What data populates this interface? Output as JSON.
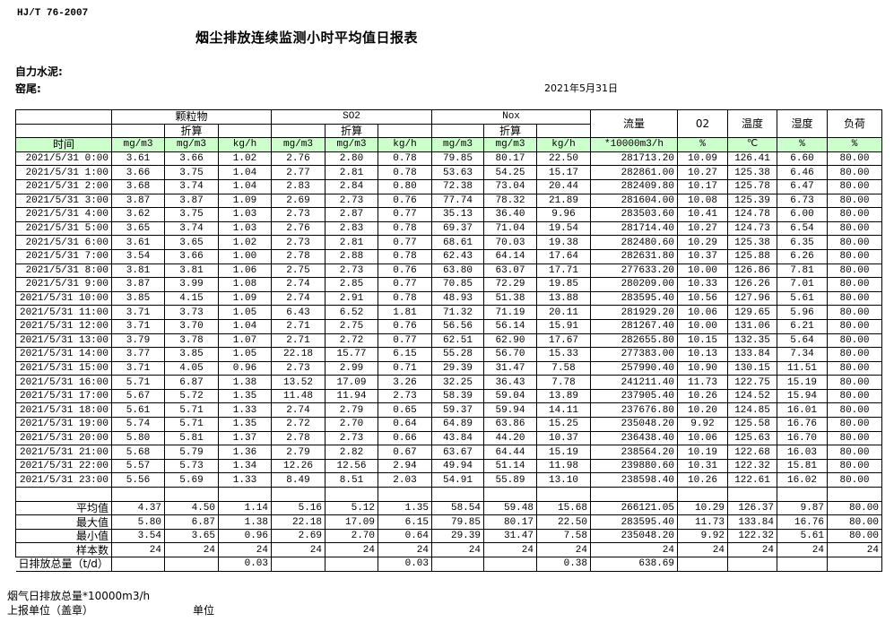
{
  "header": {
    "standard": "HJ/T  76-2007",
    "title": "烟尘排放连续监测小时平均值日报表",
    "company": "自力水泥:",
    "location": "窑尾:",
    "date": "2021年5月31日"
  },
  "table": {
    "groups": {
      "particulate": "颗粒物",
      "so2": "SO2",
      "nox": "Nox",
      "flow": "流量",
      "o2": "02",
      "temp": "温度",
      "humidity": "湿度",
      "load": "负荷"
    },
    "converted_label": "折算",
    "time_label": "时间",
    "units": [
      "mg/m3",
      "mg/m3",
      "kg/h",
      "mg/m3",
      "mg/m3",
      "kg/h",
      "mg/m3",
      "mg/m3",
      "kg/h",
      "*10000m3/h",
      "%",
      "℃",
      "%",
      "%"
    ],
    "rows": [
      [
        "2021/5/31  0:00",
        "3.61",
        "3.66",
        "1.02",
        "2.76",
        "2.80",
        "0.78",
        "79.85",
        "80.17",
        "22.50",
        "281713.20",
        "10.09",
        "126.41",
        "6.60",
        "80.00"
      ],
      [
        "2021/5/31  1:00",
        "3.66",
        "3.75",
        "1.04",
        "2.77",
        "2.81",
        "0.78",
        "53.63",
        "54.25",
        "15.17",
        "282861.00",
        "10.27",
        "125.38",
        "6.46",
        "80.00"
      ],
      [
        "2021/5/31  2:00",
        "3.68",
        "3.74",
        "1.04",
        "2.83",
        "2.84",
        "0.80",
        "72.38",
        "73.04",
        "20.44",
        "282409.80",
        "10.17",
        "125.78",
        "6.47",
        "80.00"
      ],
      [
        "2021/5/31  3:00",
        "3.87",
        "3.87",
        "1.09",
        "2.69",
        "2.73",
        "0.76",
        "77.74",
        "78.32",
        "21.89",
        "281604.00",
        "10.08",
        "125.39",
        "6.73",
        "80.00"
      ],
      [
        "2021/5/31  4:00",
        "3.62",
        "3.75",
        "1.03",
        "2.73",
        "2.87",
        "0.77",
        "35.13",
        "36.40",
        "9.96",
        "283503.60",
        "10.41",
        "124.78",
        "6.00",
        "80.00"
      ],
      [
        "2021/5/31  5:00",
        "3.65",
        "3.74",
        "1.03",
        "2.76",
        "2.83",
        "0.78",
        "69.37",
        "71.04",
        "19.54",
        "281714.40",
        "10.27",
        "124.73",
        "6.54",
        "80.00"
      ],
      [
        "2021/5/31  6:00",
        "3.61",
        "3.65",
        "1.02",
        "2.73",
        "2.81",
        "0.77",
        "68.61",
        "70.03",
        "19.38",
        "282480.60",
        "10.29",
        "125.38",
        "6.35",
        "80.00"
      ],
      [
        "2021/5/31  7:00",
        "3.54",
        "3.66",
        "1.00",
        "2.78",
        "2.88",
        "0.78",
        "62.43",
        "64.14",
        "17.64",
        "282631.80",
        "10.37",
        "125.88",
        "6.26",
        "80.00"
      ],
      [
        "2021/5/31  8:00",
        "3.81",
        "3.81",
        "1.06",
        "2.75",
        "2.73",
        "0.76",
        "63.80",
        "63.07",
        "17.71",
        "277633.20",
        "10.00",
        "126.86",
        "7.81",
        "80.00"
      ],
      [
        "2021/5/31  9:00",
        "3.87",
        "3.99",
        "1.08",
        "2.74",
        "2.85",
        "0.77",
        "70.85",
        "72.29",
        "19.85",
        "280209.00",
        "10.33",
        "126.26",
        "7.01",
        "80.00"
      ],
      [
        "2021/5/31 10:00",
        "3.85",
        "4.15",
        "1.09",
        "2.74",
        "2.91",
        "0.78",
        "48.93",
        "51.38",
        "13.88",
        "283595.40",
        "10.56",
        "127.96",
        "5.61",
        "80.00"
      ],
      [
        "2021/5/31 11:00",
        "3.71",
        "3.73",
        "1.05",
        "6.43",
        "6.52",
        "1.81",
        "71.32",
        "71.19",
        "20.11",
        "281929.20",
        "10.06",
        "129.65",
        "5.96",
        "80.00"
      ],
      [
        "2021/5/31 12:00",
        "3.71",
        "3.70",
        "1.04",
        "2.71",
        "2.75",
        "0.76",
        "56.56",
        "56.14",
        "15.91",
        "281267.40",
        "10.00",
        "131.06",
        "6.21",
        "80.00"
      ],
      [
        "2021/5/31 13:00",
        "3.79",
        "3.78",
        "1.07",
        "2.71",
        "2.72",
        "0.77",
        "62.51",
        "62.90",
        "17.67",
        "282655.80",
        "10.15",
        "132.35",
        "5.64",
        "80.00"
      ],
      [
        "2021/5/31 14:00",
        "3.77",
        "3.85",
        "1.05",
        "22.18",
        "15.77",
        "6.15",
        "55.28",
        "56.70",
        "15.33",
        "277383.00",
        "10.13",
        "133.84",
        "7.34",
        "80.00"
      ],
      [
        "2021/5/31 15:00",
        "3.71",
        "4.05",
        "0.96",
        "2.73",
        "2.99",
        "0.71",
        "29.39",
        "31.47",
        "7.58",
        "257990.40",
        "10.90",
        "130.15",
        "11.51",
        "80.00"
      ],
      [
        "2021/5/31 16:00",
        "5.71",
        "6.87",
        "1.38",
        "13.52",
        "17.09",
        "3.26",
        "32.25",
        "36.43",
        "7.78",
        "241211.40",
        "11.73",
        "122.75",
        "15.19",
        "80.00"
      ],
      [
        "2021/5/31 17:00",
        "5.67",
        "5.72",
        "1.35",
        "11.48",
        "11.94",
        "2.73",
        "58.39",
        "59.04",
        "13.89",
        "237905.40",
        "10.26",
        "124.52",
        "15.94",
        "80.00"
      ],
      [
        "2021/5/31 18:00",
        "5.61",
        "5.71",
        "1.33",
        "2.74",
        "2.79",
        "0.65",
        "59.37",
        "59.94",
        "14.11",
        "237676.80",
        "10.20",
        "124.85",
        "16.01",
        "80.00"
      ],
      [
        "2021/5/31 19:00",
        "5.74",
        "5.71",
        "1.35",
        "2.72",
        "2.70",
        "0.64",
        "64.89",
        "63.86",
        "15.25",
        "235048.20",
        "9.92",
        "125.58",
        "16.76",
        "80.00"
      ],
      [
        "2021/5/31 20:00",
        "5.80",
        "5.81",
        "1.37",
        "2.78",
        "2.73",
        "0.66",
        "43.84",
        "44.20",
        "10.37",
        "236438.40",
        "10.06",
        "125.63",
        "16.70",
        "80.00"
      ],
      [
        "2021/5/31 21:00",
        "5.68",
        "5.79",
        "1.36",
        "2.79",
        "2.82",
        "0.67",
        "63.67",
        "64.44",
        "15.19",
        "238564.20",
        "10.19",
        "122.68",
        "16.03",
        "80.00"
      ],
      [
        "2021/5/31 22:00",
        "5.57",
        "5.73",
        "1.34",
        "12.26",
        "12.56",
        "2.94",
        "49.94",
        "51.14",
        "11.98",
        "239880.60",
        "10.31",
        "122.32",
        "15.81",
        "80.00"
      ],
      [
        "2021/5/31 23:00",
        "5.56",
        "5.69",
        "1.33",
        "8.49",
        "8.51",
        "2.03",
        "54.91",
        "55.89",
        "13.10",
        "238598.40",
        "10.26",
        "122.61",
        "16.02",
        "80.00"
      ]
    ],
    "summary": [
      [
        "平均值",
        "4.37",
        "4.50",
        "1.14",
        "5.16",
        "5.12",
        "1.35",
        "58.54",
        "59.48",
        "15.68",
        "266121.05",
        "10.29",
        "126.37",
        "9.87",
        "80.00"
      ],
      [
        "最大值",
        "5.80",
        "6.87",
        "1.38",
        "22.18",
        "17.09",
        "6.15",
        "79.85",
        "80.17",
        "22.50",
        "283595.40",
        "11.73",
        "133.84",
        "16.76",
        "80.00"
      ],
      [
        "最小值",
        "3.54",
        "3.65",
        "0.96",
        "2.69",
        "2.70",
        "0.64",
        "29.39",
        "31.47",
        "7.58",
        "235048.20",
        "9.92",
        "122.32",
        "5.61",
        "80.00"
      ],
      [
        "样本数",
        "24",
        "24",
        "24",
        "24",
        "24",
        "24",
        "24",
        "24",
        "24",
        "24",
        "24",
        "24",
        "24",
        "24"
      ]
    ],
    "daily_total": [
      "日排放总量（t/d）",
      "",
      "",
      "0.03",
      "",
      "",
      "0.03",
      "",
      "",
      "0.38",
      "638.69",
      "",
      "",
      "",
      ""
    ]
  },
  "footer": {
    "flue_gas_total": "烟气日排放总量*10000m3/h",
    "reporting_unit": "上报单位（盖章）",
    "unit": "单位"
  },
  "colors": {
    "unit_row_bg": "#ccffcc"
  }
}
